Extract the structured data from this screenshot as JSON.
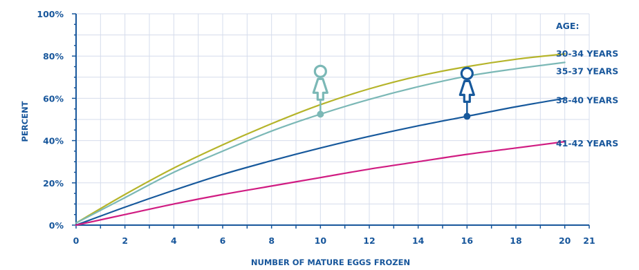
{
  "chart_data": {
    "type": "line",
    "xlabel": "NUMBER OF MATURE EGGS FROZEN",
    "ylabel": "PERCENT",
    "legend_title": "AGE:",
    "xlim": [
      0,
      21
    ],
    "ylim": [
      0,
      100
    ],
    "x_ticks": [
      "0",
      "2",
      "4",
      "6",
      "8",
      "10",
      "12",
      "14",
      "16",
      "18",
      "20",
      "21"
    ],
    "x_tick_values": [
      0,
      2,
      4,
      6,
      8,
      10,
      12,
      14,
      16,
      18,
      20,
      21
    ],
    "y_ticks": [
      "0%",
      "20%",
      "40%",
      "60%",
      "80%",
      "100%"
    ],
    "y_tick_values": [
      0,
      20,
      40,
      60,
      80,
      100
    ],
    "grid": true,
    "series": [
      {
        "name": "30-34 YEARS",
        "color": "#b5b42a",
        "x": [
          0,
          2,
          4,
          6,
          8,
          10,
          12,
          14,
          16,
          18,
          20
        ],
        "values": [
          1,
          14.5,
          27,
          38,
          48,
          57,
          64.5,
          70.5,
          75,
          78.5,
          81
        ]
      },
      {
        "name": "35-37 YEARS",
        "color": "#7bb8b6",
        "x": [
          0,
          2,
          4,
          6,
          8,
          10,
          12,
          14,
          16,
          18,
          20
        ],
        "values": [
          1,
          13,
          25,
          35,
          44.5,
          52.5,
          59.5,
          65.5,
          70.5,
          74,
          77
        ]
      },
      {
        "name": "38-40 YEARS",
        "color": "#17599c",
        "x": [
          0,
          2,
          4,
          6,
          8,
          10,
          12,
          14,
          16,
          18,
          20
        ],
        "values": [
          0,
          8.5,
          16.5,
          24,
          30.5,
          36.5,
          42,
          47,
          51.5,
          56,
          60
        ]
      },
      {
        "name": "41-42 YEARS",
        "color": "#d01c82",
        "x": [
          0,
          2,
          4,
          6,
          8,
          10,
          12,
          14,
          16,
          18,
          20
        ],
        "values": [
          0,
          5,
          10,
          14.5,
          18.5,
          22.5,
          26.5,
          30,
          33.5,
          36.5,
          39.5
        ]
      }
    ],
    "markers": [
      {
        "series": "35-37 YEARS",
        "x": 10,
        "y": 52.5,
        "color": "#7bb8b6",
        "icon": "woman-icon"
      },
      {
        "series": "38-40 YEARS",
        "x": 16,
        "y": 51.5,
        "color": "#17599c",
        "icon": "woman-icon"
      }
    ],
    "axis_color": "#17569b",
    "grid_color": "#d5dcec"
  }
}
